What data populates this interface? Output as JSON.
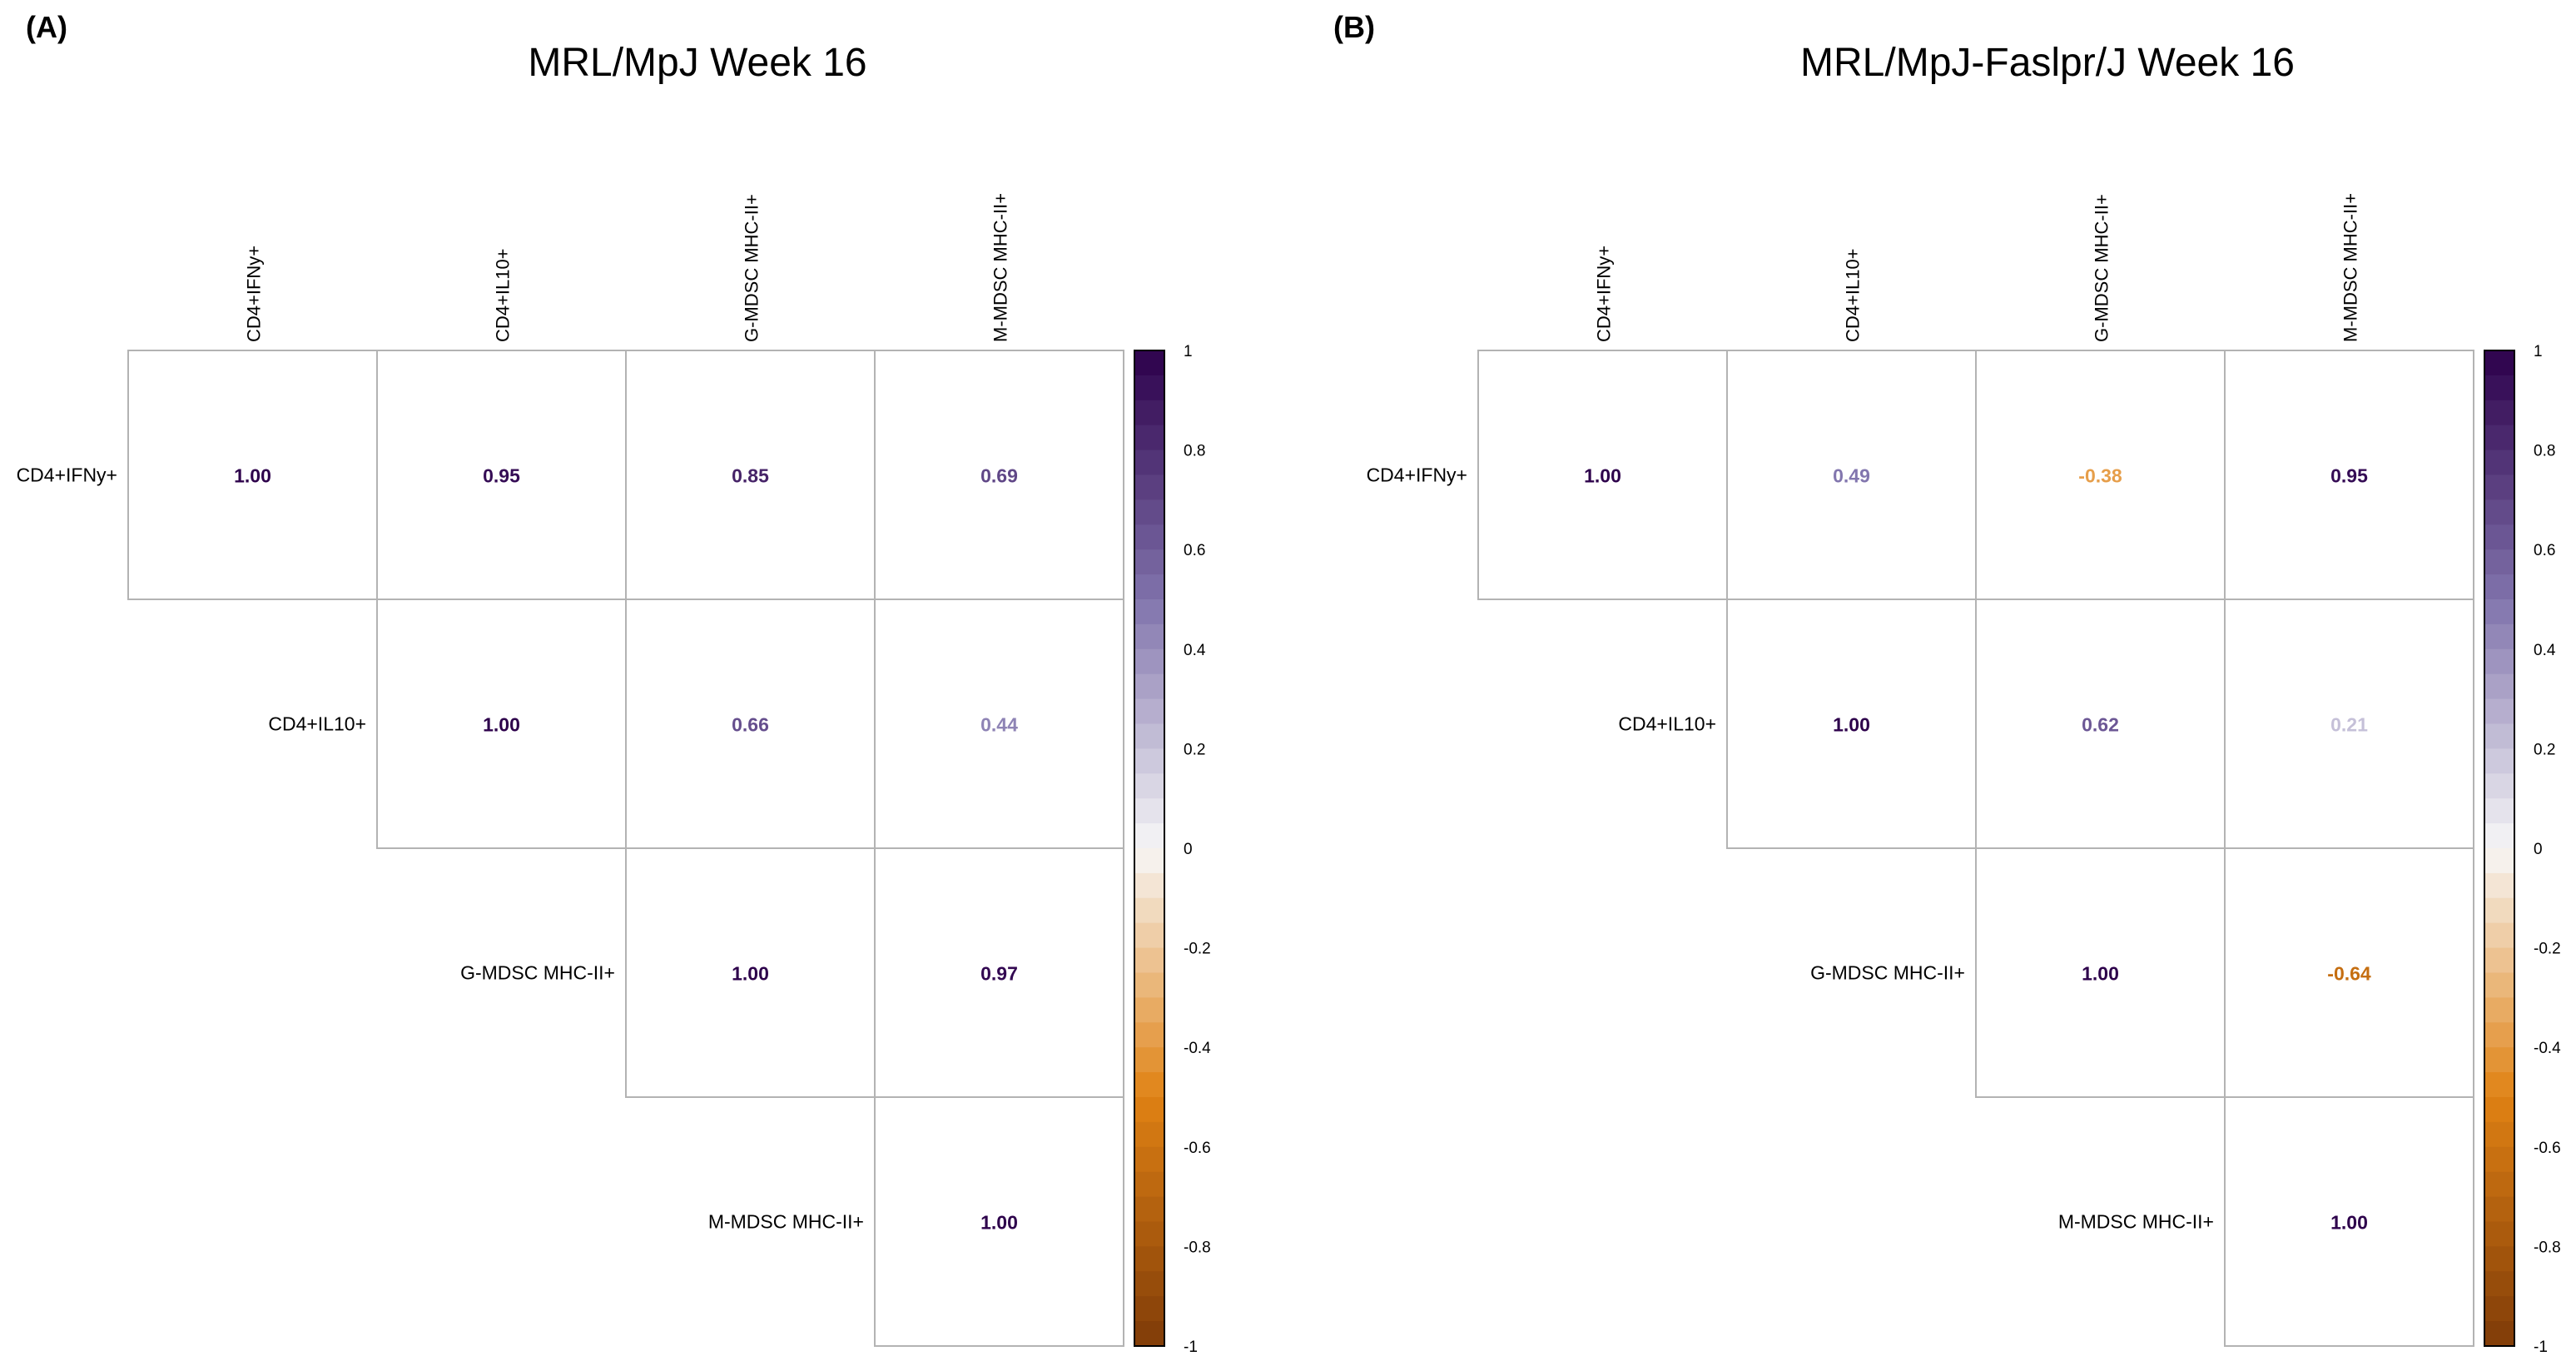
{
  "chart_data": [
    {
      "type": "heatmap",
      "panel_label": "(A)",
      "title": "MRL/MpJ Week 16",
      "row_labels": [
        "CD4+IFNy+",
        "CD4+IL10+",
        "G-MDSC MHC-II+",
        "M-MDSC MHC-II+"
      ],
      "col_labels": [
        "CD4+IFNy+",
        "CD4+IL10+",
        "G-MDSC MHC-II+",
        "M-MDSC MHC-II+"
      ],
      "matrix_type": "upper",
      "values": [
        [
          1.0,
          0.95,
          0.85,
          0.69
        ],
        [
          null,
          1.0,
          0.66,
          0.44
        ],
        [
          null,
          null,
          1.0,
          0.97
        ],
        [
          null,
          null,
          null,
          1.0
        ]
      ],
      "value_labels": [
        [
          "1.00",
          "0.95",
          "0.85",
          "0.69"
        ],
        [
          "",
          "1.00",
          "0.66",
          "0.44"
        ],
        [
          "",
          "",
          "1.00",
          "0.97"
        ],
        [
          "",
          "",
          "",
          "1.00"
        ]
      ],
      "colorbar": {
        "range": [
          -1,
          1
        ],
        "ticks": [
          "1",
          "0.8",
          "0.6",
          "0.4",
          "0.2",
          "0",
          "-0.2",
          "-0.4",
          "-0.6",
          "-0.8",
          "-1"
        ],
        "steps": 40
      }
    },
    {
      "type": "heatmap",
      "panel_label": "(B)",
      "title": "MRL/MpJ-Faslpr/J Week 16",
      "row_labels": [
        "CD4+IFNy+",
        "CD4+IL10+",
        "G-MDSC MHC-II+",
        "M-MDSC MHC-II+"
      ],
      "col_labels": [
        "CD4+IFNy+",
        "CD4+IL10+",
        "G-MDSC MHC-II+",
        "M-MDSC MHC-II+"
      ],
      "matrix_type": "upper",
      "values": [
        [
          1.0,
          0.49,
          -0.38,
          0.95
        ],
        [
          null,
          1.0,
          0.62,
          0.21
        ],
        [
          null,
          null,
          1.0,
          -0.64
        ],
        [
          null,
          null,
          null,
          1.0
        ]
      ],
      "value_labels": [
        [
          "1.00",
          "0.49",
          "-0.38",
          "0.95"
        ],
        [
          "",
          "1.00",
          "0.62",
          "0.21"
        ],
        [
          "",
          "",
          "1.00",
          "-0.64"
        ],
        [
          "",
          "",
          "",
          "1.00"
        ]
      ],
      "colorbar": {
        "range": [
          -1,
          1
        ],
        "ticks": [
          "1",
          "0.8",
          "0.6",
          "0.4",
          "0.2",
          "0",
          "-0.2",
          "-0.4",
          "-0.6",
          "-0.8",
          "-1"
        ],
        "steps": 40
      }
    }
  ],
  "colors": {
    "positive_end": "#2d004b",
    "positive_mid": "#8073ac",
    "neutral": "#f7f7f7",
    "negative_mid": "#e08214",
    "negative_end": "#7f3b08",
    "grid": "#b3b3b3"
  }
}
